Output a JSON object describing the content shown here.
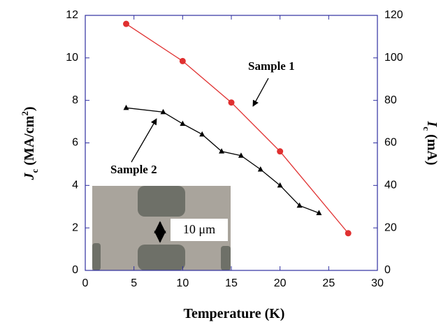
{
  "chart_data": {
    "type": "line",
    "x_label": "Temperature (K)",
    "y_label": {
      "main": "J",
      "sub": "c",
      "unit": " (MA/cm",
      "sup": "2",
      "close": ")"
    },
    "y2_label": {
      "main": "I",
      "sub": "c",
      "unit": " (mA)"
    },
    "inset_label": "10 μm",
    "xlim": [
      0,
      30
    ],
    "xticks": [
      0,
      5,
      10,
      15,
      20,
      25,
      30
    ],
    "ylim": [
      0,
      12
    ],
    "yticks": [
      0,
      2,
      4,
      6,
      8,
      10,
      12
    ],
    "y2lim": [
      0,
      120
    ],
    "y2ticks": [
      0,
      20,
      40,
      60,
      80,
      100,
      120
    ],
    "series": [
      {
        "name": "Sample 1",
        "color": "#e03030",
        "marker": "circle",
        "x": [
          4.2,
          10,
          15,
          20,
          27
        ],
        "values": [
          11.6,
          9.85,
          7.9,
          5.6,
          1.75
        ]
      },
      {
        "name": "Sample 2",
        "color": "#000000",
        "marker": "triangle",
        "x": [
          4.2,
          8,
          10,
          12,
          14,
          16,
          18,
          20,
          22,
          24
        ],
        "values": [
          7.65,
          7.45,
          6.9,
          6.4,
          5.6,
          5.4,
          4.75,
          4.0,
          3.05,
          2.7
        ]
      }
    ]
  }
}
